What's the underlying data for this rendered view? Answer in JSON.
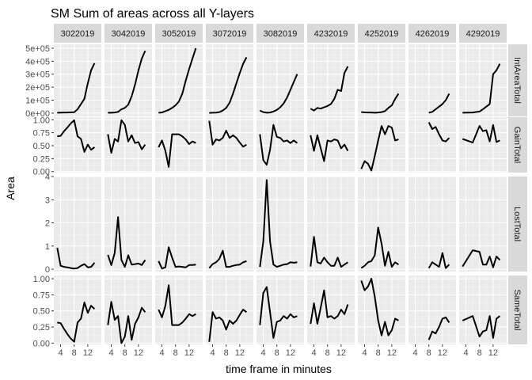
{
  "chart_data": {
    "type": "line",
    "title": "SM Sum of areas across all Y-layers",
    "xlabel": "time frame in minutes",
    "ylabel": "Area",
    "xlim": [
      2,
      16
    ],
    "x_ticks": [
      4,
      8,
      12
    ],
    "columns": [
      "3022019",
      "3042019",
      "3052019",
      "3072019",
      "3082019",
      "4232019",
      "4252019",
      "4262019",
      "4292019"
    ],
    "rows": [
      {
        "name": "IntAreaTotal",
        "ylim": [
          -25000,
          530000
        ],
        "y_ticks": [
          0,
          100000,
          200000,
          300000,
          400000,
          500000
        ],
        "y_tick_labels": [
          "0e+00",
          "1e+05",
          "2e+05",
          "3e+05",
          "4e+05",
          "5e+05"
        ]
      },
      {
        "name": "GainTotal",
        "ylim": [
          -0.02,
          1.05
        ],
        "y_ticks": [
          0,
          0.25,
          0.5,
          0.75,
          1.0
        ],
        "y_tick_labels": [
          "0.00",
          "0.25",
          "0.50",
          "0.75",
          "1.00"
        ]
      },
      {
        "name": "LostTotal",
        "ylim": [
          -0.1,
          4.0
        ],
        "y_ticks": [
          0,
          1,
          2,
          3,
          4
        ],
        "y_tick_labels": [
          "0",
          "1",
          "2",
          "3",
          "4"
        ]
      },
      {
        "name": "SameTotal",
        "ylim": [
          -0.02,
          1.05
        ],
        "y_ticks": [
          0,
          0.25,
          0.5,
          0.75,
          1.0
        ],
        "y_tick_labels": [
          "0.00",
          "0.25",
          "0.50",
          "0.75",
          "1.00"
        ]
      }
    ],
    "panels": {
      "3022019": {
        "x": [
          3,
          4,
          5,
          6,
          7,
          8,
          9,
          10,
          11,
          12,
          13,
          14
        ],
        "IntAreaTotal": [
          3000,
          4000,
          5000,
          5000,
          6000,
          7000,
          30000,
          70000,
          110000,
          230000,
          330000,
          385000
        ],
        "GainTotal": [
          0.68,
          0.69,
          0.78,
          0.85,
          0.93,
          0.99,
          0.68,
          0.63,
          0.38,
          0.52,
          0.42,
          0.47
        ],
        "LostTotal": [
          0.92,
          0.15,
          0.1,
          0.08,
          0.05,
          0.03,
          0.05,
          0.15,
          0.22,
          0.08,
          0.1,
          0.28
        ],
        "SameTotal": [
          0.32,
          0.31,
          0.22,
          0.14,
          0.07,
          0.02,
          0.32,
          0.38,
          0.63,
          0.47,
          0.58,
          0.53
        ]
      },
      "3042019": {
        "x": [
          3,
          4,
          5,
          6,
          7,
          8,
          9,
          10,
          11,
          12,
          13,
          14
        ],
        "IntAreaTotal": [
          3000,
          3000,
          5000,
          10000,
          30000,
          40000,
          65000,
          130000,
          220000,
          330000,
          420000,
          480000
        ],
        "GainTotal": [
          0.72,
          0.36,
          0.63,
          0.58,
          0.99,
          0.9,
          0.58,
          0.7,
          0.55,
          0.57,
          0.43,
          0.52
        ],
        "LostTotal": [
          0.62,
          0.18,
          0.7,
          2.25,
          0.4,
          0.1,
          0.6,
          0.2,
          0.22,
          0.25,
          0.18,
          0.4
        ],
        "SameTotal": [
          0.28,
          0.64,
          0.36,
          0.42,
          0.0,
          0.1,
          0.42,
          0.05,
          0.3,
          0.4,
          0.55,
          0.48
        ]
      },
      "3052019": {
        "x": [
          3,
          4,
          5,
          6,
          7,
          8,
          9,
          10,
          11,
          12,
          13,
          14
        ],
        "IntAreaTotal": [
          3000,
          5000,
          15000,
          25000,
          40000,
          60000,
          90000,
          150000,
          250000,
          340000,
          420000,
          500000
        ],
        "GainTotal": [
          0.47,
          0.6,
          0.4,
          0.09,
          0.72,
          0.72,
          0.72,
          0.68,
          0.62,
          0.53,
          0.58,
          0.55
        ],
        "LostTotal": [
          0.35,
          0.03,
          0.08,
          0.95,
          0.5,
          0.1,
          0.12,
          0.1,
          0.08,
          0.18,
          0.18,
          0.2
        ],
        "SameTotal": [
          0.52,
          0.4,
          0.58,
          0.9,
          0.28,
          0.28,
          0.28,
          0.32,
          0.38,
          0.45,
          0.42,
          0.45
        ]
      },
      "3072019": {
        "x": [
          3,
          4,
          5,
          6,
          7,
          8,
          9,
          10,
          11,
          12,
          13,
          14
        ],
        "IntAreaTotal": [
          2000,
          3000,
          4000,
          8000,
          20000,
          40000,
          80000,
          150000,
          230000,
          310000,
          380000,
          430000
        ],
        "GainTotal": [
          0.98,
          0.52,
          0.62,
          0.6,
          0.65,
          0.79,
          0.65,
          0.7,
          0.65,
          0.56,
          0.48,
          0.52
        ],
        "LostTotal": [
          0.05,
          0.22,
          0.3,
          0.45,
          0.8,
          0.1,
          0.1,
          0.15,
          0.18,
          0.2,
          0.3,
          0.35
        ],
        "SameTotal": [
          0.02,
          0.48,
          0.38,
          0.4,
          0.35,
          0.21,
          0.35,
          0.3,
          0.35,
          0.44,
          0.52,
          0.48
        ]
      },
      "3082019": {
        "x": [
          3,
          4,
          5,
          6,
          7,
          8,
          9,
          10,
          11,
          12,
          13,
          14
        ],
        "IntAreaTotal": [
          20000,
          8000,
          3000,
          5000,
          12000,
          25000,
          45000,
          75000,
          120000,
          180000,
          240000,
          300000
        ],
        "GainTotal": [
          0.72,
          0.22,
          0.13,
          0.42,
          0.9,
          0.67,
          0.65,
          0.58,
          0.6,
          0.55,
          0.6,
          0.55
        ],
        "LostTotal": [
          0.1,
          1.2,
          3.85,
          1.2,
          0.2,
          0.1,
          0.15,
          0.2,
          0.22,
          0.3,
          0.28,
          0.3
        ],
        "SameTotal": [
          0.28,
          0.78,
          0.87,
          0.48,
          0.08,
          0.33,
          0.35,
          0.42,
          0.38,
          0.45,
          0.4,
          0.42
        ]
      },
      "4232019": {
        "x": [
          3,
          4,
          5,
          6,
          7,
          8,
          9,
          10,
          11,
          12,
          13,
          14
        ],
        "IntAreaTotal": [
          35000,
          20000,
          40000,
          35000,
          45000,
          55000,
          70000,
          110000,
          180000,
          170000,
          310000,
          360000
        ],
        "GainTotal": [
          0.7,
          0.4,
          0.7,
          0.45,
          0.2,
          0.6,
          0.58,
          0.62,
          0.6,
          0.45,
          0.52,
          0.4
        ],
        "LostTotal": [
          0.12,
          1.4,
          0.3,
          0.25,
          0.5,
          0.3,
          0.15,
          0.15,
          0.5,
          0.1,
          0.2,
          0.3
        ],
        "SameTotal": [
          0.3,
          0.62,
          0.3,
          0.55,
          0.82,
          0.4,
          0.42,
          0.38,
          0.42,
          0.52,
          0.45,
          0.6
        ]
      },
      "4252019": {
        "x": [
          3,
          4,
          5,
          6,
          7,
          8,
          9,
          10,
          11,
          12,
          13,
          14
        ],
        "IntAreaTotal": [
          8000,
          6000,
          5000,
          5000,
          3000,
          5000,
          8000,
          15000,
          40000,
          60000,
          110000,
          150000
        ],
        "GainTotal": [
          0.05,
          0.2,
          0.15,
          0.02,
          0.3,
          0.6,
          0.88,
          0.72,
          0.88,
          0.85,
          0.6,
          0.62
        ],
        "LostTotal": [
          0.05,
          0.15,
          0.3,
          0.35,
          0.6,
          1.8,
          1.1,
          0.15,
          0.75,
          0.1,
          0.3,
          0.2
        ],
        "SameTotal": [
          0.97,
          0.82,
          0.88,
          1.0,
          0.72,
          0.35,
          0.12,
          0.33,
          0.12,
          0.2,
          0.38,
          0.35
        ]
      },
      "4262019": {
        "x": [
          8,
          9,
          10,
          11,
          12,
          13,
          14
        ],
        "IntAreaTotal": [
          3000,
          10000,
          30000,
          50000,
          70000,
          100000,
          150000
        ],
        "GainTotal": [
          0.95,
          0.82,
          0.86,
          0.72,
          0.6,
          0.58,
          0.65
        ],
        "LostTotal": [
          0.05,
          0.3,
          0.2,
          0.1,
          0.7,
          0.05,
          0.2
        ],
        "SameTotal": [
          0.05,
          0.18,
          0.15,
          0.25,
          0.38,
          0.4,
          0.32
        ]
      },
      "4292019": {
        "x": [
          3,
          6,
          8,
          9,
          10,
          11,
          12,
          13,
          14
        ],
        "IntAreaTotal": [
          3000,
          5000,
          12000,
          30000,
          50000,
          70000,
          300000,
          330000,
          380000
        ],
        "GainTotal": [
          0.63,
          0.56,
          0.88,
          0.78,
          0.8,
          0.58,
          0.9,
          0.57,
          0.6
        ],
        "LostTotal": [
          0.12,
          0.82,
          0.75,
          0.2,
          0.2,
          0.55,
          0.08,
          0.55,
          0.4
        ],
        "SameTotal": [
          0.35,
          0.42,
          0.1,
          0.18,
          0.2,
          0.42,
          0.08,
          0.38,
          0.42
        ]
      }
    }
  }
}
